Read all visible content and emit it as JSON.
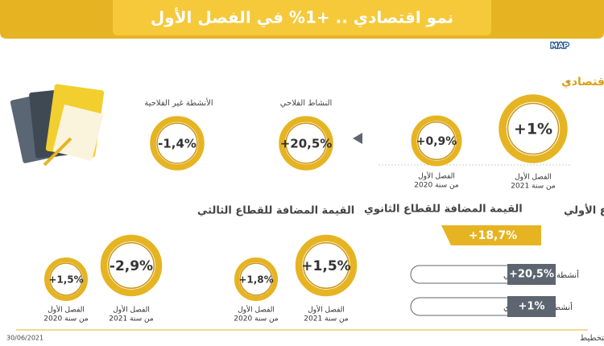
{
  "header": {
    "title": "نمو اقتصادي .. +1% في الفصل الأول",
    "logo": "MAP"
  },
  "growth": {
    "title": "النمو الاقتصادي",
    "current": {
      "value": "+1%",
      "label": [
        "الفصل الأول",
        "من سنة 2021"
      ]
    },
    "previous": {
      "value": "+0,9%",
      "label": [
        "الفصل الأول",
        "من سنة 2020"
      ]
    },
    "agricultural": {
      "title": "النشاط الفلاحي",
      "value": "+20,5%"
    },
    "non_agricultural": {
      "title": "الأنشطة غير الفلاحية",
      "value": "-1,4%"
    }
  },
  "primary": {
    "title": "القيمة المضافة للقطاع الأولي",
    "value": "+18,7%",
    "rows": [
      {
        "label": "أنشطة القطاع الفلاحي",
        "value": "+20,5%"
      },
      {
        "label": "أنشطة الصيد البحري",
        "value": "+1%"
      }
    ]
  },
  "secondary": {
    "title": "القيمة المضافة للقطاع الثانوي",
    "current": {
      "value": "+1,5%",
      "label": [
        "الفصل الأول",
        "من سنة 2021"
      ]
    },
    "previous": {
      "value": "+1,8%",
      "label": [
        "الفصل الأول",
        "من سنة 2020"
      ]
    }
  },
  "tertiary": {
    "title": "القيمة المضافة للقطاع الثالثي",
    "current": {
      "value": "-2,9%",
      "label": [
        "الفصل الأول",
        "من سنة 2021"
      ]
    },
    "previous": {
      "value": "+1,5%",
      "label": [
        "الفصل الأول",
        "من سنة 2020"
      ]
    }
  },
  "footer": {
    "source": "المصدر: المندوبية السامية للتخطيط",
    "date": "30/06/2021"
  }
}
